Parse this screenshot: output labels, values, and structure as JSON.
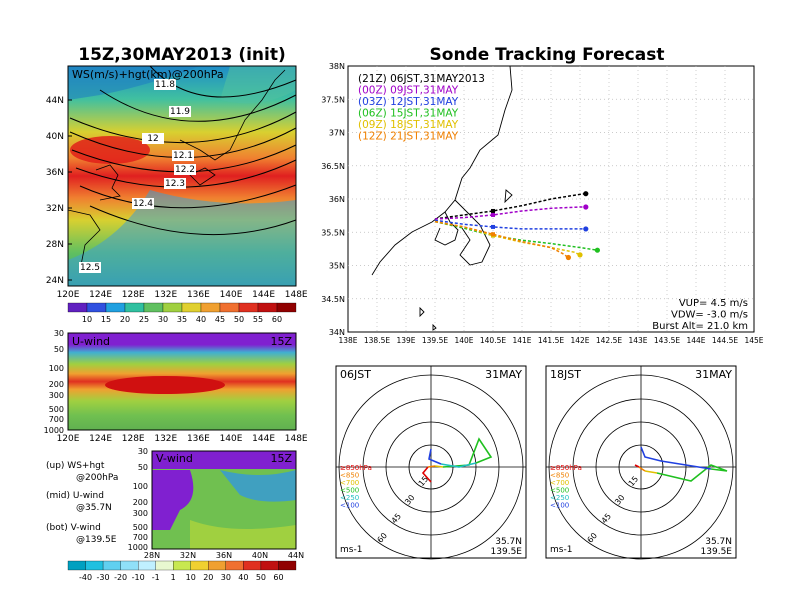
{
  "left_title": "15Z,30MAY2013 (init)",
  "right_title": "Sonde Tracking Forecast",
  "ws_map": {
    "label": "WS(m/s)+hgt(km)@200hPa",
    "lat_ticks": [
      "44N",
      "40N",
      "36N",
      "32N",
      "28N",
      "24N"
    ],
    "lon_ticks": [
      "120E",
      "124E",
      "128E",
      "132E",
      "136E",
      "140E",
      "144E",
      "148E"
    ],
    "contour_labels": [
      "11.8",
      "11.9",
      "12",
      "12.1",
      "12.2",
      "12.3",
      "12.4",
      "12.5"
    ],
    "colorbar": [
      "10",
      "15",
      "20",
      "25",
      "30",
      "35",
      "40",
      "45",
      "50",
      "55",
      "60"
    ]
  },
  "u_panel": {
    "label": "U-wind",
    "time": "15Z",
    "p_ticks": [
      "30",
      "50",
      "100",
      "200",
      "300",
      "500",
      "700",
      "1000"
    ],
    "lon_ticks": [
      "120E",
      "124E",
      "128E",
      "132E",
      "136E",
      "140E",
      "144E",
      "148E"
    ]
  },
  "v_panel": {
    "label": "V-wind",
    "time": "15Z",
    "p_ticks": [
      "30",
      "50",
      "100",
      "200",
      "300",
      "500",
      "700",
      "1000"
    ],
    "lat_ticks": [
      "28N",
      "32N",
      "36N",
      "40N",
      "44N"
    ]
  },
  "legend_notes": [
    "(up) WS+hgt",
    "@200hPa",
    "(mid) U-wind",
    "@35.7N",
    "(bot) V-wind",
    "@139.5E"
  ],
  "wind_colorbar": [
    "-40",
    "-30",
    "-20",
    "-10",
    "-1",
    "1",
    "10",
    "20",
    "30",
    "40",
    "50",
    "60"
  ],
  "track": {
    "lat_ticks": [
      "38N",
      "37.5N",
      "37N",
      "36.5N",
      "36N",
      "35.5N",
      "35N",
      "34.5N",
      "34N"
    ],
    "lon_ticks": [
      "138E",
      "138.5E",
      "139E",
      "139.5E",
      "140E",
      "140.5E",
      "141E",
      "141.5E",
      "142E",
      "142.5E",
      "143E",
      "143.5E",
      "144E",
      "144.5E",
      "145E"
    ],
    "legend": [
      {
        "label": "(21Z) 06JST,31MAY2013",
        "color": "#000000"
      },
      {
        "label": "(00Z) 09JST,31MAY",
        "color": "#a000c8"
      },
      {
        "label": "(03Z) 12JST,31MAY",
        "color": "#2040e0"
      },
      {
        "label": "(06Z) 15JST,31MAY",
        "color": "#20c020"
      },
      {
        "label": "(09Z) 18JST,31MAY",
        "color": "#e0c000"
      },
      {
        "label": "(12Z) 21JST,31MAY",
        "color": "#f08000"
      }
    ],
    "info": [
      "VUP= 4.5 m/s",
      "VDW= -3.0 m/s",
      "Burst Alt= 21.0 km"
    ]
  },
  "hodo_left": {
    "time": "06JST",
    "date": "31MAY",
    "lat": "35.7N",
    "lon": "139.5E",
    "unit": "ms-1"
  },
  "hodo_right": {
    "time": "18JST",
    "date": "31MAY",
    "lat": "35.7N",
    "lon": "139.5E",
    "unit": "ms-1"
  },
  "hodo_rings": [
    "15",
    "30",
    "45",
    "60"
  ],
  "hodo_legend": [
    {
      "label": "≥850hPa",
      "color": "#e00000"
    },
    {
      "label": "<850",
      "color": "#f08000"
    },
    {
      "label": "<700",
      "color": "#e0c000"
    },
    {
      "label": "<500",
      "color": "#20c020"
    },
    {
      "label": "<250",
      "color": "#20c0c0"
    },
    {
      "label": "<100",
      "color": "#2040e0"
    }
  ],
  "chart_data": {
    "type": "line",
    "title": "Sonde Tracking Forecast",
    "xlabel": "",
    "ylabel": "",
    "xlim": [
      138,
      145
    ],
    "ylim": [
      34,
      38
    ],
    "series": [
      {
        "name": "(21Z) 06JST,31MAY2013",
        "x": [
          139.5,
          140.0,
          140.5,
          141.0,
          141.5,
          142.0,
          142.1
        ],
        "y": [
          35.7,
          35.76,
          35.82,
          35.9,
          36.0,
          36.07,
          36.08
        ]
      },
      {
        "name": "(00Z) 09JST,31MAY",
        "x": [
          139.5,
          140.0,
          140.5,
          141.0,
          141.5,
          142.0,
          142.1
        ],
        "y": [
          35.7,
          35.72,
          35.76,
          35.82,
          35.86,
          35.88,
          35.88
        ]
      },
      {
        "name": "(03Z) 12JST,31MAY",
        "x": [
          139.5,
          140.0,
          140.5,
          141.0,
          141.5,
          142.0,
          142.1
        ],
        "y": [
          35.68,
          35.62,
          35.58,
          35.55,
          35.55,
          35.55,
          35.55
        ]
      },
      {
        "name": "(06Z) 15JST,31MAY",
        "x": [
          139.5,
          140.0,
          140.5,
          141.0,
          141.5,
          142.0,
          142.3
        ],
        "y": [
          35.66,
          35.56,
          35.45,
          35.38,
          35.33,
          35.27,
          35.23
        ]
      },
      {
        "name": "(09Z) 18JST,31MAY",
        "x": [
          139.5,
          140.0,
          140.5,
          141.0,
          141.5,
          141.9,
          142.0
        ],
        "y": [
          35.66,
          35.58,
          35.45,
          35.35,
          35.27,
          35.2,
          35.16
        ]
      },
      {
        "name": "(12Z) 21JST,31MAY",
        "x": [
          139.5,
          140.0,
          140.5,
          141.0,
          141.5,
          141.7,
          141.8
        ],
        "y": [
          35.66,
          35.58,
          35.47,
          35.36,
          35.27,
          35.18,
          35.12
        ]
      }
    ]
  }
}
